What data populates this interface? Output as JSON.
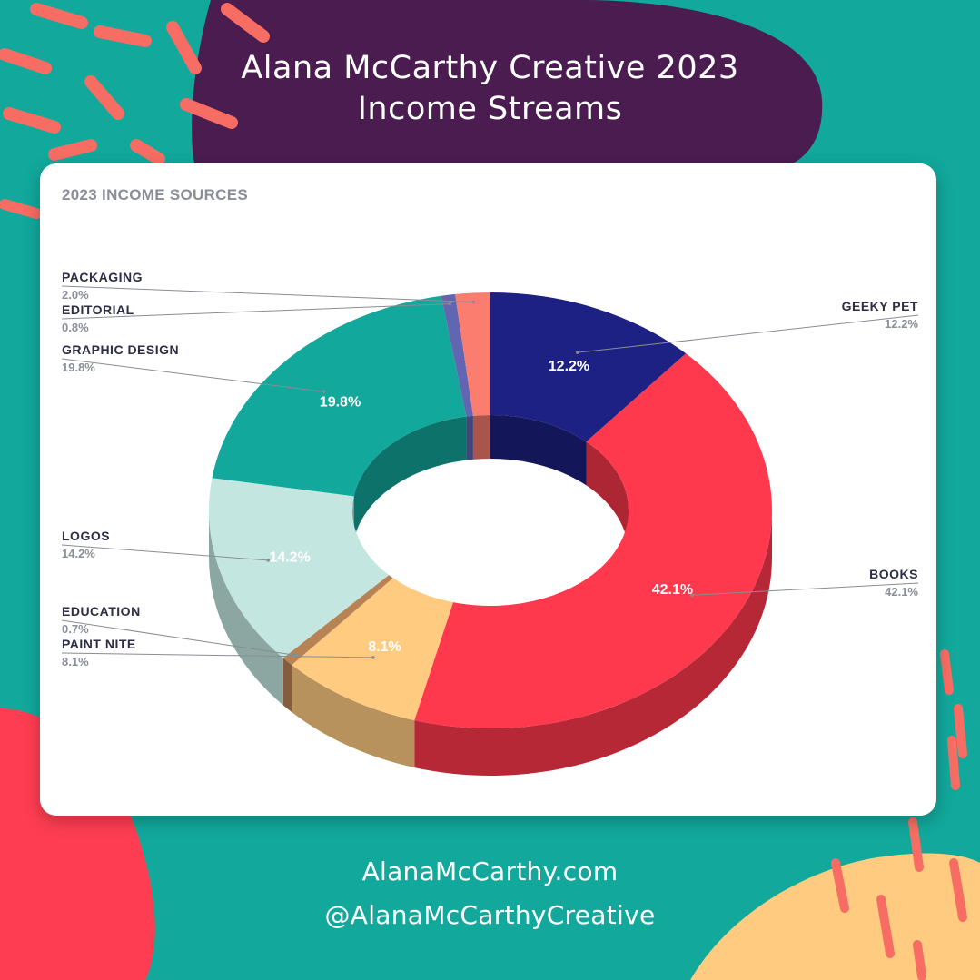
{
  "header": {
    "title_line_1": "Alana McCarthy Creative 2023",
    "title_line_2": "Income Streams"
  },
  "footer": {
    "website": "AlanaMcCarthy.com",
    "handle": "@AlanaMcCarthyCreative"
  },
  "colors": {
    "background_teal": "#12a89c",
    "blob_purple": "#4a1c50",
    "blob_red": "#ff3d52",
    "blob_yellow": "#fecb80",
    "dash_coral": "#f86d63"
  },
  "chart_data": {
    "type": "pie",
    "style": "3d-donut",
    "title": "2023 INCOME SOURCES",
    "slices": [
      {
        "label": "GEEKY PET",
        "value": 12.2,
        "display": "12.2%",
        "color": "#1c2183",
        "label_side": "right"
      },
      {
        "label": "BOOKS",
        "value": 42.1,
        "display": "42.1%",
        "color": "#fe384d",
        "label_side": "right"
      },
      {
        "label": "PAINT NITE",
        "value": 8.1,
        "display": "8.1%",
        "color": "#fecb80",
        "label_side": "left"
      },
      {
        "label": "EDUCATION",
        "value": 0.7,
        "display": "0.7%",
        "color": "#b78254",
        "label_side": "left"
      },
      {
        "label": "LOGOS",
        "value": 14.2,
        "display": "14.2%",
        "color": "#c3e6e0",
        "label_side": "left"
      },
      {
        "label": "GRAPHIC DESIGN",
        "value": 19.8,
        "display": "19.8%",
        "color": "#12a89c",
        "label_side": "left"
      },
      {
        "label": "EDITORIAL",
        "value": 0.8,
        "display": "0.8%",
        "color": "#6265b2",
        "label_side": "left"
      },
      {
        "label": "PACKAGING",
        "value": 2.0,
        "display": "2.0%",
        "color": "#fa7d70",
        "label_side": "left"
      }
    ],
    "inside_labels": [
      "GEEKY PET",
      "BOOKS",
      "PAINT NITE",
      "LOGOS",
      "GRAPHIC DESIGN"
    ]
  }
}
